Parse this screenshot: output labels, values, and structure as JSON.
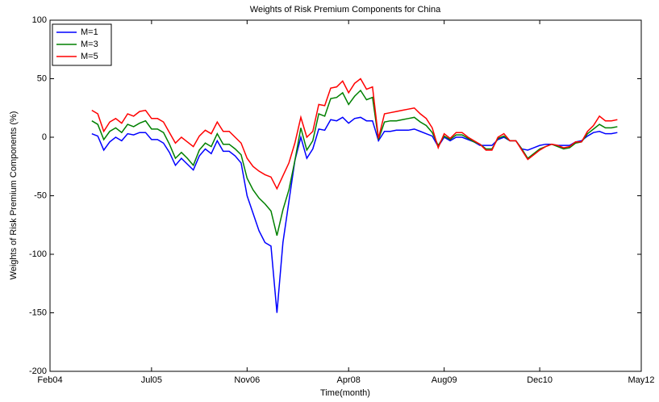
{
  "chart_data": {
    "type": "line",
    "title": "Weights of Risk Premium Components for China",
    "x_label": "Time(month)",
    "y_label": "Weights of Risk Premium Components (%)",
    "x": [
      "2004-09",
      "2004-10",
      "2004-11",
      "2004-12",
      "2005-01",
      "2005-02",
      "2005-03",
      "2005-04",
      "2005-05",
      "2005-06",
      "2005-07",
      "2005-08",
      "2005-09",
      "2005-10",
      "2005-11",
      "2005-12",
      "2006-01",
      "2006-02",
      "2006-03",
      "2006-04",
      "2006-05",
      "2006-06",
      "2006-07",
      "2006-08",
      "2006-09",
      "2006-10",
      "2006-11",
      "2006-12",
      "2007-01",
      "2007-02",
      "2007-03",
      "2007-04",
      "2007-05",
      "2007-06",
      "2007-07",
      "2007-08",
      "2007-09",
      "2007-10",
      "2007-11",
      "2007-12",
      "2008-01",
      "2008-02",
      "2008-03",
      "2008-04",
      "2008-05",
      "2008-06",
      "2008-07",
      "2008-08",
      "2008-09",
      "2008-10",
      "2008-11",
      "2008-12",
      "2009-01",
      "2009-02",
      "2009-03",
      "2009-04",
      "2009-05",
      "2009-06",
      "2009-07",
      "2009-08",
      "2009-09",
      "2009-10",
      "2009-11",
      "2009-12",
      "2010-01",
      "2010-02",
      "2010-03",
      "2010-04",
      "2010-05",
      "2010-06",
      "2010-07",
      "2010-08",
      "2010-09",
      "2010-10",
      "2010-11",
      "2010-12",
      "2011-01",
      "2011-02",
      "2011-03",
      "2011-04",
      "2011-05",
      "2011-06",
      "2011-07",
      "2011-08",
      "2011-09",
      "2011-10",
      "2011-11",
      "2011-12",
      "2012-01"
    ],
    "series": [
      {
        "name": "M=1",
        "color": "#0000ff",
        "values": [
          3,
          1,
          -11,
          -4,
          0,
          -3,
          3,
          2,
          4,
          4,
          -2,
          -2,
          -5,
          -13,
          -24,
          -18,
          -23,
          -28,
          -16,
          -10,
          -14,
          -3,
          -12,
          -12,
          -16,
          -22,
          -50,
          -65,
          -80,
          -90,
          -93,
          -150,
          -90,
          -55,
          -20,
          0,
          -18,
          -10,
          7,
          6,
          15,
          14,
          17,
          12,
          16,
          17,
          14,
          14,
          -3,
          5,
          5,
          6,
          6,
          6,
          7,
          5,
          3,
          1,
          -8,
          0,
          -3,
          0,
          0,
          -2,
          -4,
          -7,
          -7,
          -7,
          -2,
          0,
          -3,
          -3,
          -10,
          -11,
          -9,
          -7,
          -6,
          -6,
          -7,
          -7,
          -7,
          -4,
          -3,
          1,
          4,
          5,
          3,
          3,
          4
        ]
      },
      {
        "name": "M=3",
        "color": "#008000",
        "values": [
          14,
          11,
          -2,
          5,
          8,
          4,
          11,
          9,
          12,
          14,
          7,
          7,
          4,
          -6,
          -18,
          -13,
          -18,
          -24,
          -11,
          -5,
          -8,
          3,
          -6,
          -6,
          -10,
          -15,
          -35,
          -45,
          -52,
          -57,
          -63,
          -84,
          -62,
          -45,
          -20,
          8,
          -11,
          -3,
          20,
          18,
          33,
          34,
          38,
          28,
          35,
          40,
          32,
          34,
          -2,
          13,
          14,
          14,
          15,
          16,
          17,
          13,
          10,
          4,
          -7,
          1,
          -2,
          2,
          2,
          -1,
          -4,
          -6,
          -10,
          -10,
          -1,
          1,
          -3,
          -3,
          -10,
          -18,
          -14,
          -10,
          -8,
          -6,
          -8,
          -10,
          -9,
          -5,
          -4,
          3,
          7,
          11,
          8,
          8,
          9
        ]
      },
      {
        "name": "M=5",
        "color": "#ff0000",
        "values": [
          23,
          20,
          5,
          13,
          16,
          12,
          20,
          18,
          22,
          23,
          16,
          16,
          13,
          4,
          -5,
          0,
          -4,
          -8,
          1,
          6,
          3,
          13,
          5,
          5,
          0,
          -5,
          -18,
          -25,
          -29,
          -32,
          -34,
          -44,
          -33,
          -22,
          -5,
          17,
          0,
          5,
          28,
          27,
          42,
          43,
          48,
          38,
          46,
          50,
          41,
          43,
          -1,
          20,
          21,
          22,
          23,
          24,
          25,
          20,
          16,
          8,
          -9,
          3,
          -1,
          4,
          4,
          0,
          -3,
          -6,
          -11,
          -11,
          0,
          3,
          -3,
          -3,
          -11,
          -19,
          -15,
          -11,
          -8,
          -6,
          -7,
          -9,
          -8,
          -4,
          -4,
          5,
          10,
          18,
          14,
          14,
          15
        ]
      }
    ],
    "xlim": [
      "2004-02",
      "2012-05"
    ],
    "xticks": [
      {
        "value": "2004-02",
        "label": "Feb04"
      },
      {
        "value": "2005-07",
        "label": "Jul05"
      },
      {
        "value": "2006-11",
        "label": "Nov06"
      },
      {
        "value": "2008-04",
        "label": "Apr08"
      },
      {
        "value": "2009-08",
        "label": "Aug09"
      },
      {
        "value": "2010-12",
        "label": "Dec10"
      },
      {
        "value": "2012-05",
        "label": "May12"
      }
    ],
    "ylim": [
      -200,
      100
    ],
    "yticks": [
      -200,
      -150,
      -100,
      -50,
      0,
      50,
      100
    ],
    "grid": false,
    "legend": "upper left"
  }
}
